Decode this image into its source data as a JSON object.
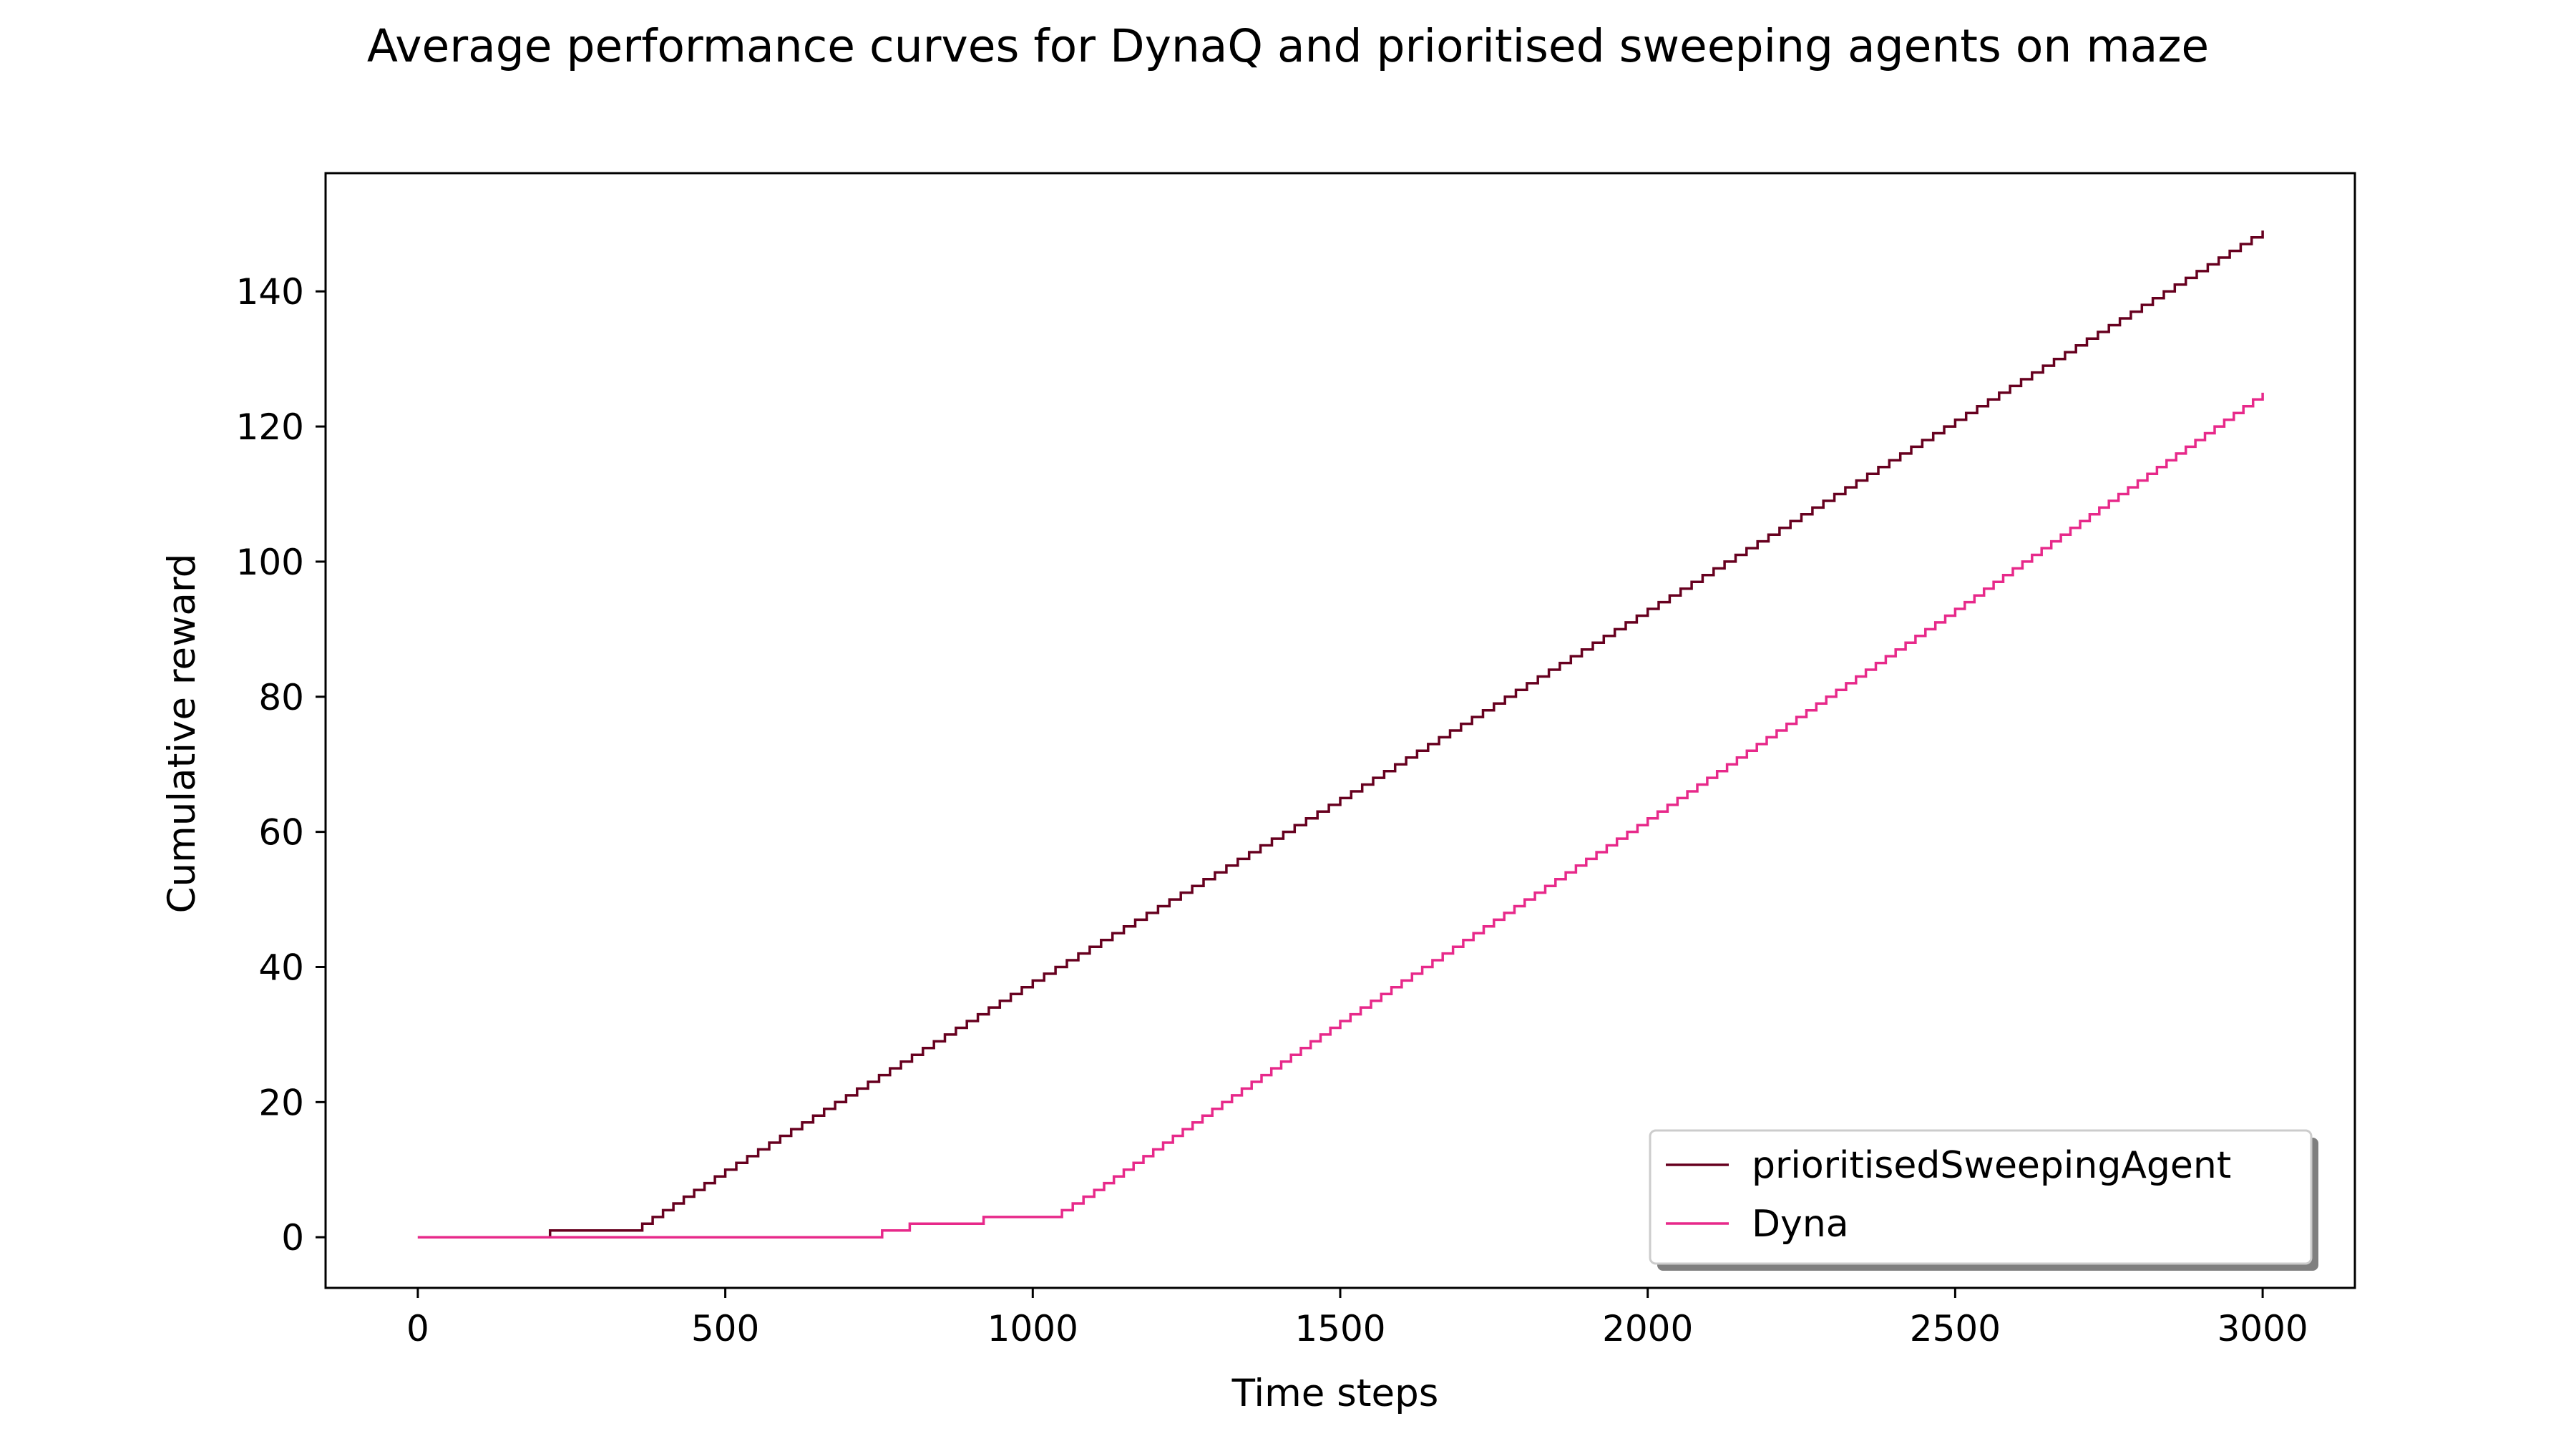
{
  "chart_data": {
    "type": "line",
    "title": "Average performance curves for DynaQ and prioritised sweeping agents on maze",
    "xlabel": "Time steps",
    "ylabel": "Cumulative reward",
    "xlim": [
      -150,
      3150
    ],
    "ylim": [
      -7.5,
      157.5
    ],
    "xticks": [
      0,
      500,
      1000,
      1500,
      2000,
      2500,
      3000
    ],
    "yticks": [
      0,
      20,
      40,
      60,
      80,
      100,
      120,
      140
    ],
    "grid": false,
    "legend_position": "lower-right",
    "step": true,
    "series": [
      {
        "name": "prioritisedSweepingAgent",
        "color": "#67001f",
        "points": [
          [
            0,
            0
          ],
          [
            215,
            0
          ],
          [
            215,
            1
          ],
          [
            350,
            1
          ],
          [
            365,
            2
          ],
          [
            500,
            10
          ],
          [
            1000,
            38
          ],
          [
            1500,
            65
          ],
          [
            2000,
            93
          ],
          [
            2500,
            121
          ],
          [
            3000,
            149
          ]
        ]
      },
      {
        "name": "Dyna",
        "color": "#e7298a",
        "points": [
          [
            0,
            0
          ],
          [
            755,
            0
          ],
          [
            755,
            1
          ],
          [
            800,
            1
          ],
          [
            800,
            2
          ],
          [
            920,
            2
          ],
          [
            920,
            3
          ],
          [
            1030,
            3
          ],
          [
            1100,
            7
          ],
          [
            1500,
            32
          ],
          [
            2000,
            62
          ],
          [
            2500,
            93
          ],
          [
            3000,
            125
          ]
        ]
      }
    ]
  }
}
